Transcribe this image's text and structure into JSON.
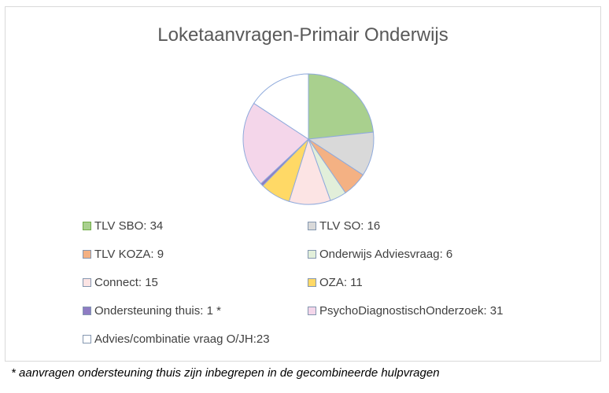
{
  "chart_data": {
    "type": "pie",
    "title": "Loketaanvragen-Primair Onderwijs",
    "slices": [
      {
        "label": "TLV SBO: 34",
        "name": "TLV SBO",
        "value": 34,
        "color": "#a9d08e",
        "stroke": "#70ad47"
      },
      {
        "label": "TLV SO: 16",
        "name": "TLV SO",
        "value": 16,
        "color": "#d9d9d9",
        "stroke": "#8497b0"
      },
      {
        "label": "TLV KOZA: 9",
        "name": "TLV KOZA",
        "value": 9,
        "color": "#f4b183",
        "stroke": "#8497b0"
      },
      {
        "label": "Onderwijs Adviesvraag: 6",
        "name": "Onderwijs Adviesvraag",
        "value": 6,
        "color": "#e2efda",
        "stroke": "#8497b0"
      },
      {
        "label": "Connect: 15",
        "name": "Connect",
        "value": 15,
        "color": "#fce4e4",
        "stroke": "#8497b0"
      },
      {
        "label": "OZA: 11",
        "name": "OZA",
        "value": 11,
        "color": "#ffd966",
        "stroke": "#8497b0"
      },
      {
        "label": "Ondersteuning thuis: 1 *",
        "name": "Ondersteuning thuis",
        "value": 1,
        "color": "#8e7cc3",
        "stroke": "#8497b0"
      },
      {
        "label": "PsychoDiagnostischOnderzoek: 31",
        "name": "PsychoDiagnostischOnderzoek",
        "value": 31,
        "color": "#f4d6ea",
        "stroke": "#8497b0"
      },
      {
        "label": "Advies/combinatie vraag O/JH:23",
        "name": "Advies/combinatie vraag O/JH",
        "value": 23,
        "color": "#ffffff",
        "stroke": "#8497b0"
      }
    ],
    "legend_placement": "bottom"
  },
  "footnote": "* aanvragen ondersteuning thuis zijn inbegrepen in de gecombineerde hulpvragen"
}
